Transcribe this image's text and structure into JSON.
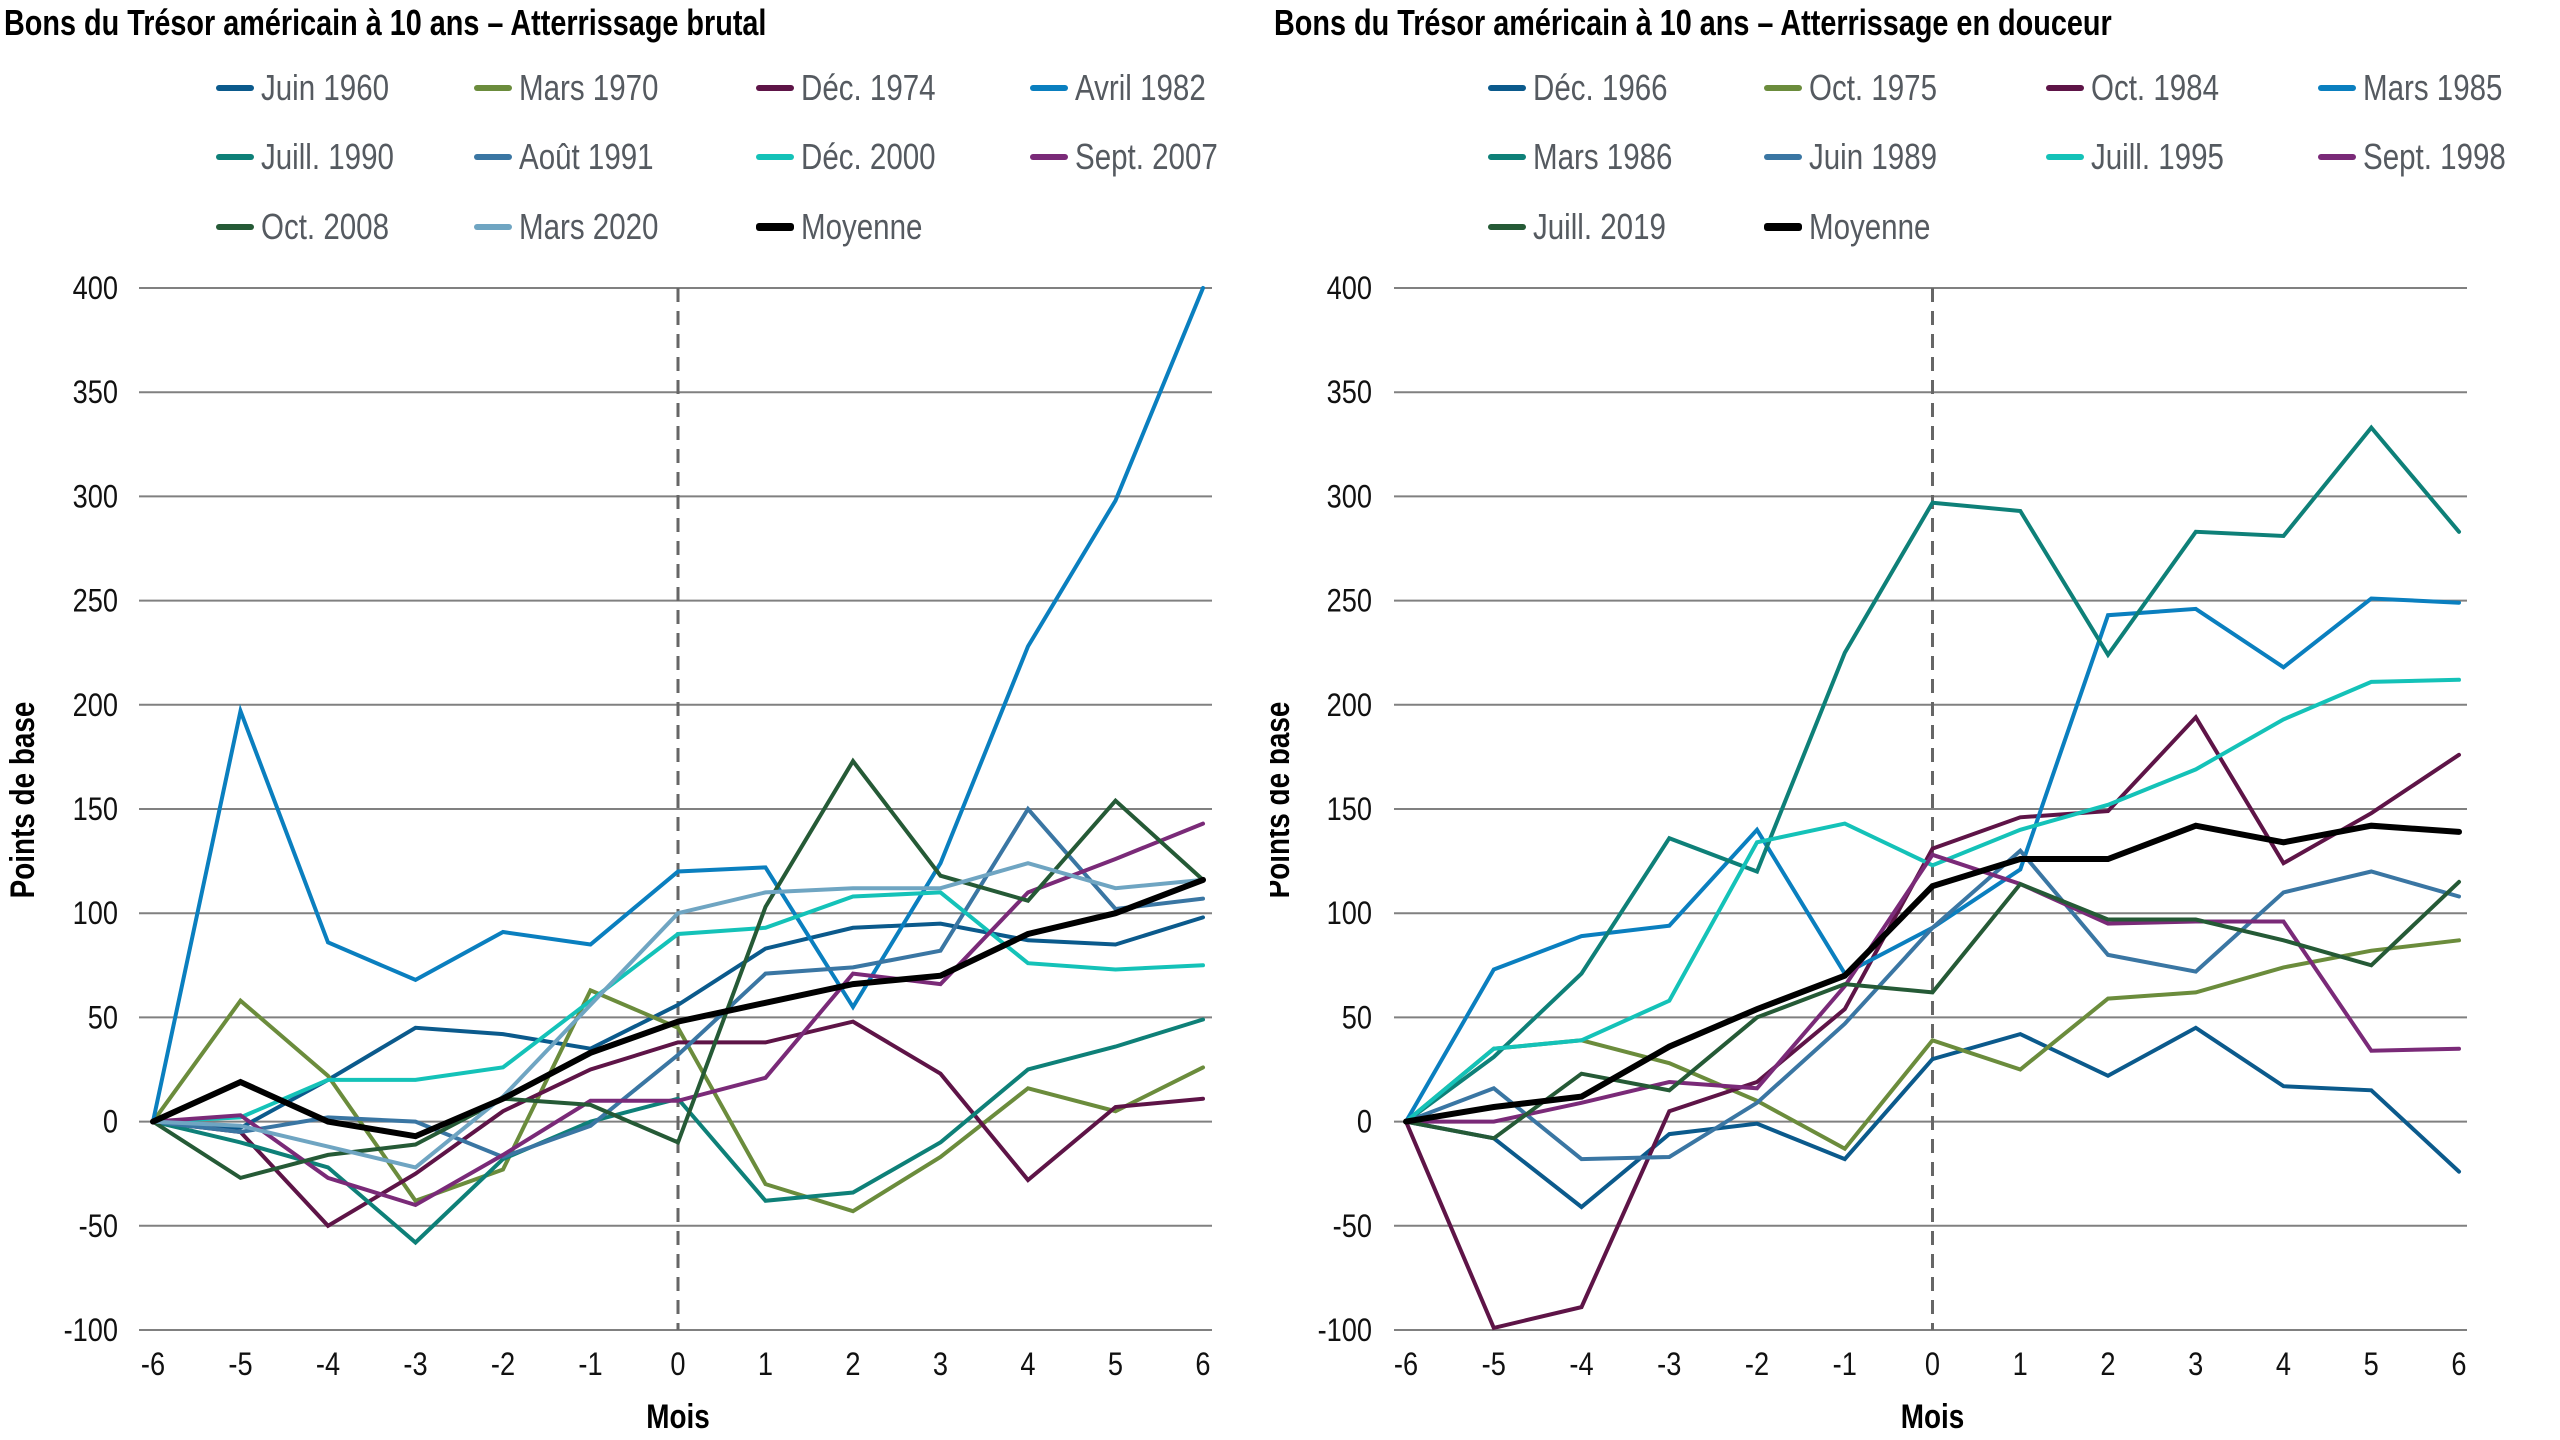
{
  "chart_data": [
    {
      "type": "line",
      "title": "Bons du Trésor américain à 10 ans – Atterrissage brutal",
      "xlabel": "Mois",
      "ylabel": "Points de base",
      "x": [
        -6,
        -5,
        -4,
        -3,
        -2,
        -1,
        0,
        1,
        2,
        3,
        4,
        5,
        6
      ],
      "x_tick_labels": [
        "-6",
        "-5",
        "-4",
        "-3",
        "-2",
        "-1",
        "0",
        "1",
        "2",
        "3",
        "4",
        "5",
        "6"
      ],
      "y_tick_labels": [
        "400",
        "350",
        "300",
        "250",
        "200",
        "150",
        "100",
        "50",
        "0",
        "-50",
        "-100"
      ],
      "y_ticks": [
        400,
        350,
        300,
        250,
        200,
        150,
        100,
        50,
        0,
        -50,
        -100
      ],
      "ylim": [
        -100,
        400
      ],
      "xlim": [
        -6,
        6
      ],
      "grid": "horizontal",
      "reference_line_x": 0,
      "legend": "top",
      "series": [
        {
          "name": "Juin 1960",
          "color": "#0b5a8c",
          "values": [
            0,
            -3,
            20,
            45,
            42,
            35,
            56,
            83,
            93,
            95,
            87,
            85,
            98
          ]
        },
        {
          "name": "Mars 1970",
          "color": "#6b8c3c",
          "values": [
            0,
            58,
            22,
            -38,
            -23,
            63,
            45,
            -30,
            -43,
            -17,
            16,
            5,
            26
          ]
        },
        {
          "name": "Déc. 1974",
          "color": "#5e1447",
          "values": [
            0,
            -5,
            -50,
            -25,
            5,
            25,
            38,
            38,
            48,
            23,
            -28,
            7,
            11
          ]
        },
        {
          "name": "Avril 1982",
          "color": "#0a7fbf",
          "values": [
            0,
            197,
            86,
            68,
            91,
            85,
            120,
            122,
            55,
            124,
            228,
            298,
            400
          ]
        },
        {
          "name": "Juill. 1990",
          "color": "#0e8078",
          "values": [
            0,
            -10,
            -22,
            -58,
            -18,
            0,
            11,
            -38,
            -34,
            -10,
            25,
            36,
            49
          ]
        },
        {
          "name": "Août 1991",
          "color": "#3a76a3",
          "values": [
            0,
            -5,
            2,
            0,
            -17,
            -2,
            32,
            71,
            74,
            82,
            150,
            102,
            107
          ]
        },
        {
          "name": "Déc. 2000",
          "color": "#14c2b8",
          "values": [
            0,
            2,
            20,
            20,
            26,
            58,
            90,
            93,
            108,
            110,
            76,
            73,
            75
          ]
        },
        {
          "name": "Sept. 2007",
          "color": "#7a2a78",
          "values": [
            0,
            3,
            -27,
            -40,
            -16,
            10,
            10,
            21,
            71,
            66,
            110,
            126,
            143
          ]
        },
        {
          "name": "Oct. 2008",
          "color": "#255a36",
          "values": [
            0,
            -27,
            -16,
            -11,
            11,
            8,
            -10,
            103,
            173,
            118,
            106,
            154,
            116
          ]
        },
        {
          "name": "Mars 2020",
          "color": "#6fa5c2",
          "values": [
            0,
            -2,
            -12,
            -22,
            12,
            56,
            100,
            110,
            112,
            112,
            124,
            112,
            116
          ]
        },
        {
          "name": "Moyenne",
          "color": "#000000",
          "values": [
            0,
            19,
            0,
            -7,
            11,
            33,
            48,
            57,
            66,
            70,
            90,
            100,
            116
          ]
        }
      ]
    },
    {
      "type": "line",
      "title": "Bons du Trésor américain à 10 ans – Atterrissage en douceur",
      "xlabel": "Mois",
      "ylabel": "Points de base",
      "x": [
        -6,
        -5,
        -4,
        -3,
        -2,
        -1,
        0,
        1,
        2,
        3,
        4,
        5,
        6
      ],
      "x_tick_labels": [
        "-6",
        "-5",
        "-4",
        "-3",
        "-2",
        "-1",
        "0",
        "1",
        "2",
        "3",
        "4",
        "5",
        "6"
      ],
      "y_tick_labels": [
        "400",
        "350",
        "300",
        "250",
        "200",
        "150",
        "100",
        "50",
        "0",
        "-50",
        "-100"
      ],
      "y_ticks": [
        400,
        350,
        300,
        250,
        200,
        150,
        100,
        50,
        0,
        -50,
        -100
      ],
      "ylim": [
        -100,
        400
      ],
      "xlim": [
        -6,
        6
      ],
      "grid": "horizontal",
      "reference_line_x": 0,
      "legend": "top",
      "series": [
        {
          "name": "Déc. 1966",
          "color": "#0b5a8c",
          "values": [
            0,
            -8,
            -41,
            -6,
            -1,
            -18,
            30,
            42,
            22,
            45,
            17,
            15,
            -24
          ]
        },
        {
          "name": "Oct. 1975",
          "color": "#6b8c3c",
          "values": [
            0,
            35,
            39,
            28,
            10,
            -13,
            39,
            25,
            59,
            62,
            74,
            82,
            87
          ]
        },
        {
          "name": "Oct. 1984",
          "color": "#5e1447",
          "values": [
            0,
            -99,
            -89,
            5,
            19,
            54,
            131,
            146,
            149,
            194,
            124,
            148,
            176
          ]
        },
        {
          "name": "Mars 1985",
          "color": "#0a7fbf",
          "values": [
            0,
            73,
            89,
            94,
            140,
            71,
            93,
            121,
            243,
            246,
            218,
            251,
            249
          ]
        },
        {
          "name": "Mars 1986",
          "color": "#0e8078",
          "values": [
            0,
            31,
            71,
            136,
            120,
            225,
            297,
            293,
            224,
            283,
            281,
            333,
            283
          ]
        },
        {
          "name": "Juin 1989",
          "color": "#3a76a3",
          "values": [
            0,
            16,
            -18,
            -17,
            9,
            47,
            93,
            130,
            80,
            72,
            110,
            120,
            108
          ]
        },
        {
          "name": "Juill. 1995",
          "color": "#14c2b8",
          "values": [
            0,
            35,
            39,
            58,
            134,
            143,
            123,
            140,
            152,
            169,
            193,
            211,
            212
          ]
        },
        {
          "name": "Sept. 1998",
          "color": "#7a2a78",
          "values": [
            0,
            0,
            9,
            19,
            16,
            65,
            128,
            114,
            95,
            96,
            96,
            34,
            35
          ]
        },
        {
          "name": "Juill. 2019",
          "color": "#255a36",
          "values": [
            0,
            -8,
            23,
            15,
            50,
            66,
            62,
            114,
            97,
            97,
            87,
            75,
            115
          ]
        },
        {
          "name": "Moyenne",
          "color": "#000000",
          "values": [
            0,
            7,
            12,
            36,
            54,
            70,
            113,
            126,
            126,
            142,
            134,
            142,
            139
          ]
        }
      ]
    }
  ]
}
